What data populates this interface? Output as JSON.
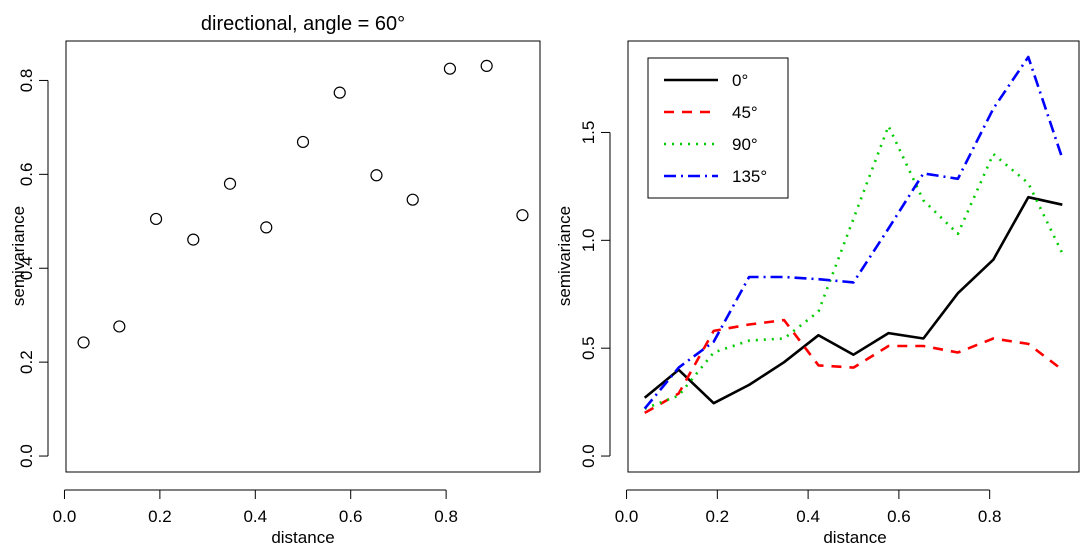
{
  "chart_data": [
    {
      "type": "scatter",
      "title": "directional, angle = 60°",
      "xlabel": "distance",
      "ylabel": "semivariance",
      "xlim": [
        0.0,
        1.0
      ],
      "ylim": [
        0.0,
        0.85
      ],
      "xticks": [
        0.0,
        0.2,
        0.4,
        0.6,
        0.8
      ],
      "xtick_labels": [
        "0.0",
        "0.2",
        "0.4",
        "0.6",
        "0.8"
      ],
      "yticks": [
        0.0,
        0.2,
        0.4,
        0.6,
        0.8
      ],
      "ytick_labels": [
        "0.0",
        "0.2",
        "0.4",
        "0.6",
        "0.8"
      ],
      "grid": false,
      "series": [
        {
          "x": [
            0.04,
            0.115,
            0.192,
            0.27,
            0.347,
            0.423,
            0.5,
            0.577,
            0.654,
            0.73,
            0.808,
            0.885,
            0.96
          ],
          "y": [
            0.242,
            0.276,
            0.505,
            0.461,
            0.58,
            0.487,
            0.669,
            0.774,
            0.598,
            0.546,
            0.825,
            0.831,
            0.513
          ],
          "marker": "open-circle",
          "color": "#000000"
        }
      ]
    },
    {
      "type": "line",
      "title": "",
      "xlabel": "distance",
      "ylabel": "semivariance",
      "xlim": [
        0.0,
        1.0
      ],
      "ylim": [
        0.0,
        1.85
      ],
      "xticks": [
        0.0,
        0.2,
        0.4,
        0.6,
        0.8
      ],
      "xtick_labels": [
        "0.0",
        "0.2",
        "0.4",
        "0.6",
        "0.8"
      ],
      "yticks": [
        0.0,
        0.5,
        1.0,
        1.5
      ],
      "ytick_labels": [
        "0.0",
        "0.5",
        "1.0",
        "1.5"
      ],
      "grid": false,
      "legend": "top-left",
      "x": [
        0.04,
        0.115,
        0.192,
        0.27,
        0.347,
        0.423,
        0.5,
        0.577,
        0.654,
        0.73,
        0.808,
        0.885,
        0.96
      ],
      "series": [
        {
          "name": "0°",
          "color": "#000000",
          "dash": "",
          "values": [
            0.27,
            0.4,
            0.245,
            0.33,
            0.435,
            0.56,
            0.47,
            0.57,
            0.545,
            0.755,
            0.91,
            1.2,
            1.165
          ]
        },
        {
          "name": "45°",
          "color": "#ff0000",
          "dash": "10,8",
          "values": [
            0.2,
            0.29,
            0.58,
            0.61,
            0.63,
            0.42,
            0.41,
            0.51,
            0.51,
            0.48,
            0.545,
            0.52,
            0.4
          ]
        },
        {
          "name": "90°",
          "color": "#00cd00",
          "dash": "2,6",
          "values": [
            0.22,
            0.28,
            0.48,
            0.535,
            0.545,
            0.67,
            1.1,
            1.53,
            1.185,
            1.03,
            1.4,
            1.265,
            0.94
          ]
        },
        {
          "name": "135°",
          "color": "#0000ff",
          "dash": "12,5,2,5",
          "values": [
            0.22,
            0.41,
            0.53,
            0.83,
            0.83,
            0.82,
            0.805,
            1.055,
            1.31,
            1.285,
            1.61,
            1.85,
            1.38
          ]
        }
      ]
    }
  ]
}
